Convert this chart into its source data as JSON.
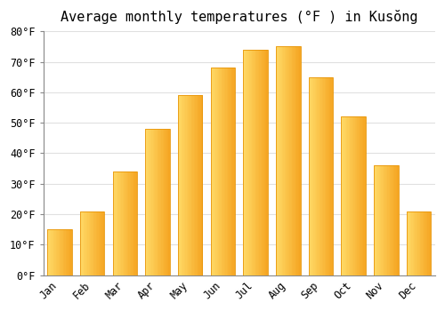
{
  "title": "Average monthly temperatures (°F ) in Kusŏng",
  "months": [
    "Jan",
    "Feb",
    "Mar",
    "Apr",
    "May",
    "Jun",
    "Jul",
    "Aug",
    "Sep",
    "Oct",
    "Nov",
    "Dec"
  ],
  "values": [
    15,
    21,
    34,
    48,
    59,
    68,
    74,
    75,
    65,
    52,
    36,
    21
  ],
  "bar_color_left": "#FFD966",
  "bar_color_right": "#F5A623",
  "bar_edge_color": "#E8960A",
  "ylim": [
    0,
    80
  ],
  "yticks": [
    0,
    10,
    20,
    30,
    40,
    50,
    60,
    70,
    80
  ],
  "ytick_labels": [
    "0°F",
    "10°F",
    "20°F",
    "30°F",
    "40°F",
    "50°F",
    "60°F",
    "70°F",
    "80°F"
  ],
  "background_color": "#FFFFFF",
  "grid_color": "#E0E0E0",
  "title_fontsize": 11,
  "tick_fontsize": 8.5,
  "font_family": "monospace",
  "bar_width": 0.75
}
